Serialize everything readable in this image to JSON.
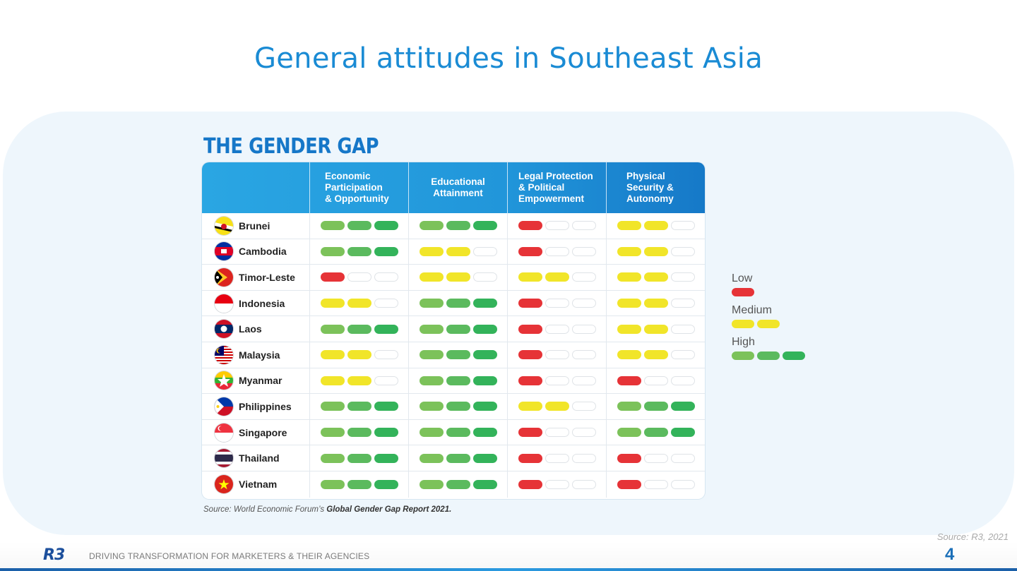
{
  "slide": {
    "title": "General attitudes in Southeast Asia",
    "source": "Source: R3, 2021",
    "page_number": "4",
    "footer_logo": "R3",
    "footer_tagline": "DRIVING TRANSFORMATION FOR MARKETERS & THEIR AGENCIES"
  },
  "gender_gap": {
    "heading": "THE GENDER GAP",
    "columns": [
      "Economic\nParticipation\n& Opportunity",
      "Educational\nAttainment",
      "Legal Protection\n& Political\nEmpowerment",
      "Physical\nSecurity &\nAutonomy"
    ],
    "rating_scale": {
      "1": "Low",
      "2": "Medium",
      "3": "High"
    },
    "rows": [
      {
        "country": "Brunei",
        "flag": "brunei-flag",
        "ratings": [
          3,
          3,
          1,
          2
        ]
      },
      {
        "country": "Cambodia",
        "flag": "cambodia-flag",
        "ratings": [
          3,
          2,
          1,
          2
        ]
      },
      {
        "country": "Timor-Leste",
        "flag": "timor-leste-flag",
        "ratings": [
          1,
          2,
          2,
          2
        ]
      },
      {
        "country": "Indonesia",
        "flag": "indonesia-flag",
        "ratings": [
          2,
          3,
          1,
          2
        ]
      },
      {
        "country": "Laos",
        "flag": "laos-flag",
        "ratings": [
          3,
          3,
          1,
          2
        ]
      },
      {
        "country": "Malaysia",
        "flag": "malaysia-flag",
        "ratings": [
          2,
          3,
          1,
          2
        ]
      },
      {
        "country": "Myanmar",
        "flag": "myanmar-flag",
        "ratings": [
          2,
          3,
          1,
          1
        ]
      },
      {
        "country": "Philippines",
        "flag": "philippines-flag",
        "ratings": [
          3,
          3,
          2,
          3
        ]
      },
      {
        "country": "Singapore",
        "flag": "singapore-flag",
        "ratings": [
          3,
          3,
          1,
          3
        ]
      },
      {
        "country": "Thailand",
        "flag": "thailand-flag",
        "ratings": [
          3,
          3,
          1,
          1
        ]
      },
      {
        "country": "Vietnam",
        "flag": "vietnam-flag",
        "ratings": [
          3,
          3,
          1,
          1
        ]
      }
    ],
    "source_prefix": "Source: World Economic Forum’s ",
    "source_bold": "Global Gender Gap Report 2021."
  },
  "legend": {
    "low": "Low",
    "medium": "Medium",
    "high": "High"
  },
  "colors": {
    "title_blue": "#1a8bd4",
    "low_red": "#e63337",
    "medium_yellow": "#f1e529",
    "high_green": "#33b35a"
  }
}
